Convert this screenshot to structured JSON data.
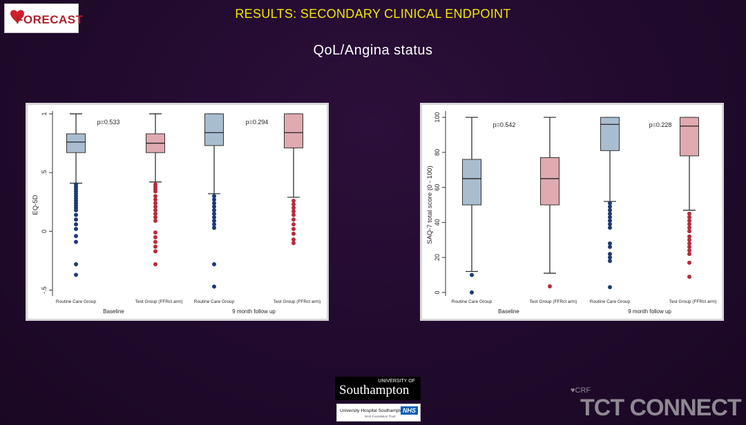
{
  "header": {
    "logo_text": "FORECAST",
    "title": "RESULTS:  SECONDARY CLINICAL ENDPOINT",
    "subtitle": "QoL/Angina status"
  },
  "footer": {
    "university_small": "UNIVERSITY OF",
    "university_name": "Southampton",
    "hospital_name": "University Hospital Southampton",
    "hospital_sub": "NHS Foundation Trust",
    "nhs_badge": "NHS",
    "crf_label": "CRF",
    "brand": "TCT CONNECT"
  },
  "colors": {
    "routine": "#a9bdd1",
    "routine_points": "#1f3a73",
    "test": "#dfaab0",
    "test_points": "#b62c3d",
    "title": "#f2e600"
  },
  "chart_data": [
    {
      "type": "box",
      "ylabel": "EQ-5D",
      "ylim": [
        -0.55,
        1.0
      ],
      "yticks": [
        -0.5,
        0,
        0.5,
        1
      ],
      "ytick_labels": [
        "-.5",
        "0",
        ".5",
        "1"
      ],
      "group_labels": [
        "Baseline",
        "9 month follow up"
      ],
      "category_labels": [
        "Routine Care Group",
        "Test Group (FFRct arm)",
        "Routine Care Group",
        "Test Group (FFRct arm)"
      ],
      "pvalues": [
        "p=0.533",
        "p=0.294"
      ],
      "boxes": [
        {
          "series": "routine",
          "min": 0.41,
          "q1": 0.67,
          "median": 0.76,
          "q3": 0.83,
          "max": 1.0,
          "outliers": [
            0.4,
            0.38,
            0.36,
            0.34,
            0.32,
            0.3,
            0.28,
            0.26,
            0.24,
            0.22,
            0.2,
            0.18,
            0.14,
            0.1,
            0.06,
            0.02,
            -0.04,
            -0.09,
            -0.28,
            -0.37
          ]
        },
        {
          "series": "test",
          "min": 0.42,
          "q1": 0.67,
          "median": 0.75,
          "q3": 0.83,
          "max": 1.0,
          "outliers": [
            0.4,
            0.38,
            0.36,
            0.34,
            0.3,
            0.27,
            0.24,
            0.21,
            0.18,
            0.15,
            0.12,
            0.09,
            -0.01,
            -0.05,
            -0.09,
            -0.13,
            -0.17,
            -0.28
          ]
        },
        {
          "series": "routine",
          "min": 0.32,
          "q1": 0.73,
          "median": 0.84,
          "q3": 1.0,
          "max": 1.0,
          "outliers": [
            0.3,
            0.27,
            0.24,
            0.21,
            0.18,
            0.15,
            0.12,
            0.09,
            0.06,
            0.03,
            -0.28,
            -0.47
          ]
        },
        {
          "series": "test",
          "min": 0.29,
          "q1": 0.71,
          "median": 0.84,
          "q3": 1.0,
          "max": 1.0,
          "outliers": [
            0.26,
            0.23,
            0.2,
            0.17,
            0.14,
            0.1,
            0.06,
            0.02,
            -0.02,
            -0.07,
            -0.1
          ]
        }
      ]
    },
    {
      "type": "box",
      "ylabel": "SAQ-7 total score (0 - 100)",
      "ylim": [
        -2,
        102
      ],
      "yticks": [
        0,
        20,
        40,
        60,
        80,
        100
      ],
      "ytick_labels": [
        "0",
        "20",
        "40",
        "60",
        "80",
        "100"
      ],
      "group_labels": [
        "Baseline",
        "9 month follow up"
      ],
      "category_labels": [
        "Routine Care Group",
        "Test Group (FFRct arm)",
        "Routine Care Group",
        "Test Group (FFRct arm)"
      ],
      "pvalues": [
        "p=0.542",
        "p=0.228"
      ],
      "boxes": [
        {
          "series": "routine",
          "min": 12,
          "q1": 50,
          "median": 65,
          "q3": 76,
          "max": 100,
          "outliers": [
            10,
            0
          ]
        },
        {
          "series": "test",
          "min": 11,
          "q1": 50,
          "median": 65,
          "q3": 77,
          "max": 100,
          "outliers": [
            3.5
          ]
        },
        {
          "series": "routine",
          "min": 52,
          "q1": 81,
          "median": 96,
          "q3": 100,
          "max": 100,
          "outliers": [
            51,
            49,
            47,
            45,
            43,
            41,
            39,
            37,
            28,
            26,
            22,
            20,
            18,
            3
          ]
        },
        {
          "series": "test",
          "min": 47,
          "q1": 78,
          "median": 95,
          "q3": 100,
          "max": 100,
          "outliers": [
            45,
            43,
            41,
            39,
            37,
            35,
            32,
            30,
            28,
            26,
            24,
            22,
            17,
            9
          ]
        }
      ]
    }
  ]
}
